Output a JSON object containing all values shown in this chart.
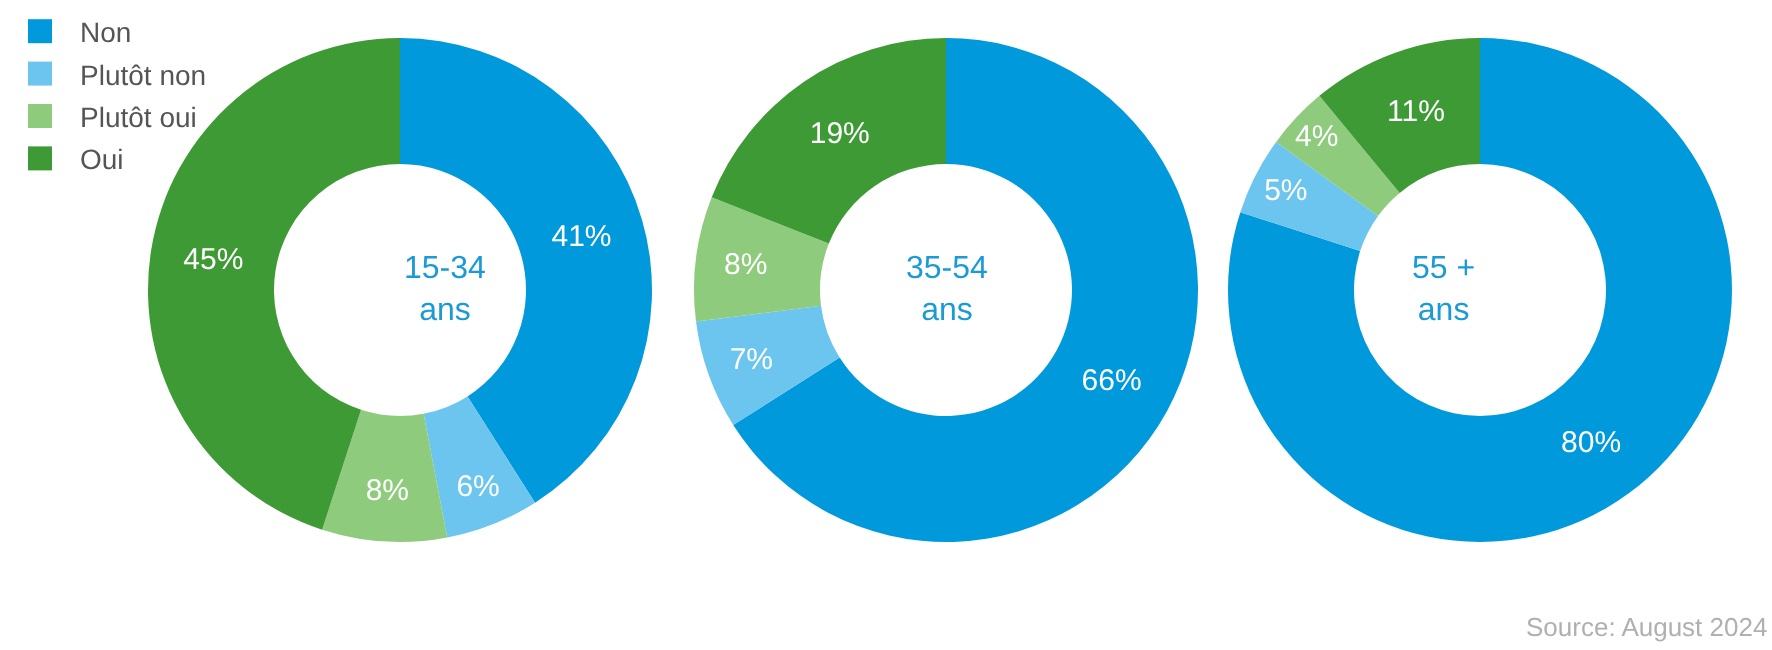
{
  "chart_data": [
    {
      "type": "donut",
      "title": "15-34 ans",
      "legend": "top left",
      "categories": [
        "Non",
        "Plutôt non",
        "Plutôt oui",
        "Oui"
      ],
      "values": [
        41,
        6,
        8,
        45
      ],
      "value_labels": [
        "41%",
        "6%",
        "8%",
        "45%"
      ],
      "colors": [
        "#0099dc",
        "#6cc5ee",
        "#8fcb7c",
        "#3d9a34"
      ]
    },
    {
      "type": "donut",
      "title": "35-54 ans",
      "categories": [
        null,
        null,
        null,
        null
      ],
      "values": [
        66,
        7,
        8,
        19
      ],
      "value_labels": [
        "66%",
        "7%",
        "8%",
        "19%"
      ],
      "colors": [
        "#0099dc",
        "#6cc5ee",
        "#8fcb7c",
        "#3d9a34"
      ]
    },
    {
      "type": "donut",
      "title": "55 + ans",
      "categories": [
        null,
        null,
        null,
        null
      ],
      "values": [
        80,
        5,
        4,
        11
      ],
      "value_labels": [
        "80%",
        "5%",
        "4%",
        "11%"
      ],
      "colors": [
        "#0099dc",
        "#6cc5ee",
        "#8fcb7c",
        "#3d9a34"
      ],
      "annotations": [
        "Source: August 2024"
      ]
    }
  ]
}
